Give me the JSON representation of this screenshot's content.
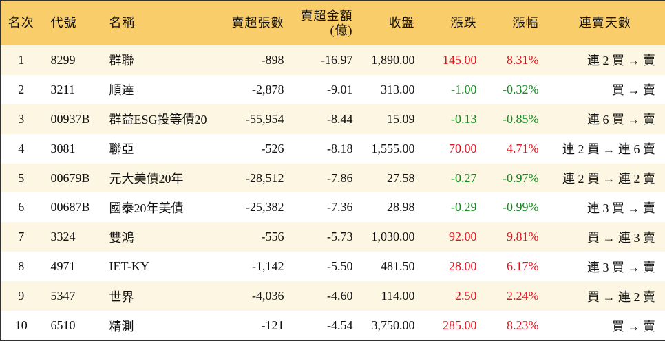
{
  "table": {
    "headers": [
      "名次",
      "代號",
      "名稱",
      "賣超張數",
      "賣超金額\n(億)",
      "收盤",
      "漲跌",
      "漲幅",
      "連賣天數"
    ],
    "rows": [
      [
        "1",
        "8299",
        "群聯",
        "-898",
        "-16.97",
        "1,890.00",
        "145.00",
        "8.31%",
        "連 2 買 → 賣"
      ],
      [
        "2",
        "3211",
        "順達",
        "-2,878",
        "-9.01",
        "313.00",
        "-1.00",
        "-0.32%",
        "買 → 賣"
      ],
      [
        "3",
        "00937B",
        "群益ESG投等債20",
        "-55,954",
        "-8.44",
        "15.09",
        "-0.13",
        "-0.85%",
        "連 6 買 → 賣"
      ],
      [
        "4",
        "3081",
        "聯亞",
        "-526",
        "-8.18",
        "1,555.00",
        "70.00",
        "4.71%",
        "連 2 買 → 連 6 賣"
      ],
      [
        "5",
        "00679B",
        "元大美債20年",
        "-28,512",
        "-7.86",
        "27.58",
        "-0.27",
        "-0.97%",
        "連 2 買 → 連 2 賣"
      ],
      [
        "6",
        "00687B",
        "國泰20年美債",
        "-25,382",
        "-7.36",
        "28.98",
        "-0.29",
        "-0.99%",
        "連 3 買 → 賣"
      ],
      [
        "7",
        "3324",
        "雙鴻",
        "-556",
        "-5.73",
        "1,030.00",
        "92.00",
        "9.81%",
        "買 → 連 3 賣"
      ],
      [
        "8",
        "4971",
        "IET-KY",
        "-1,142",
        "-5.50",
        "481.50",
        "28.00",
        "6.17%",
        "連 3 買 → 賣"
      ],
      [
        "9",
        "5347",
        "世界",
        "-4,036",
        "-4.60",
        "114.00",
        "2.50",
        "2.24%",
        "買 → 連 2 賣"
      ],
      [
        "10",
        "6510",
        "精測",
        "-121",
        "-4.54",
        "3,750.00",
        "285.00",
        "8.23%",
        "買 → 賣"
      ]
    ]
  }
}
